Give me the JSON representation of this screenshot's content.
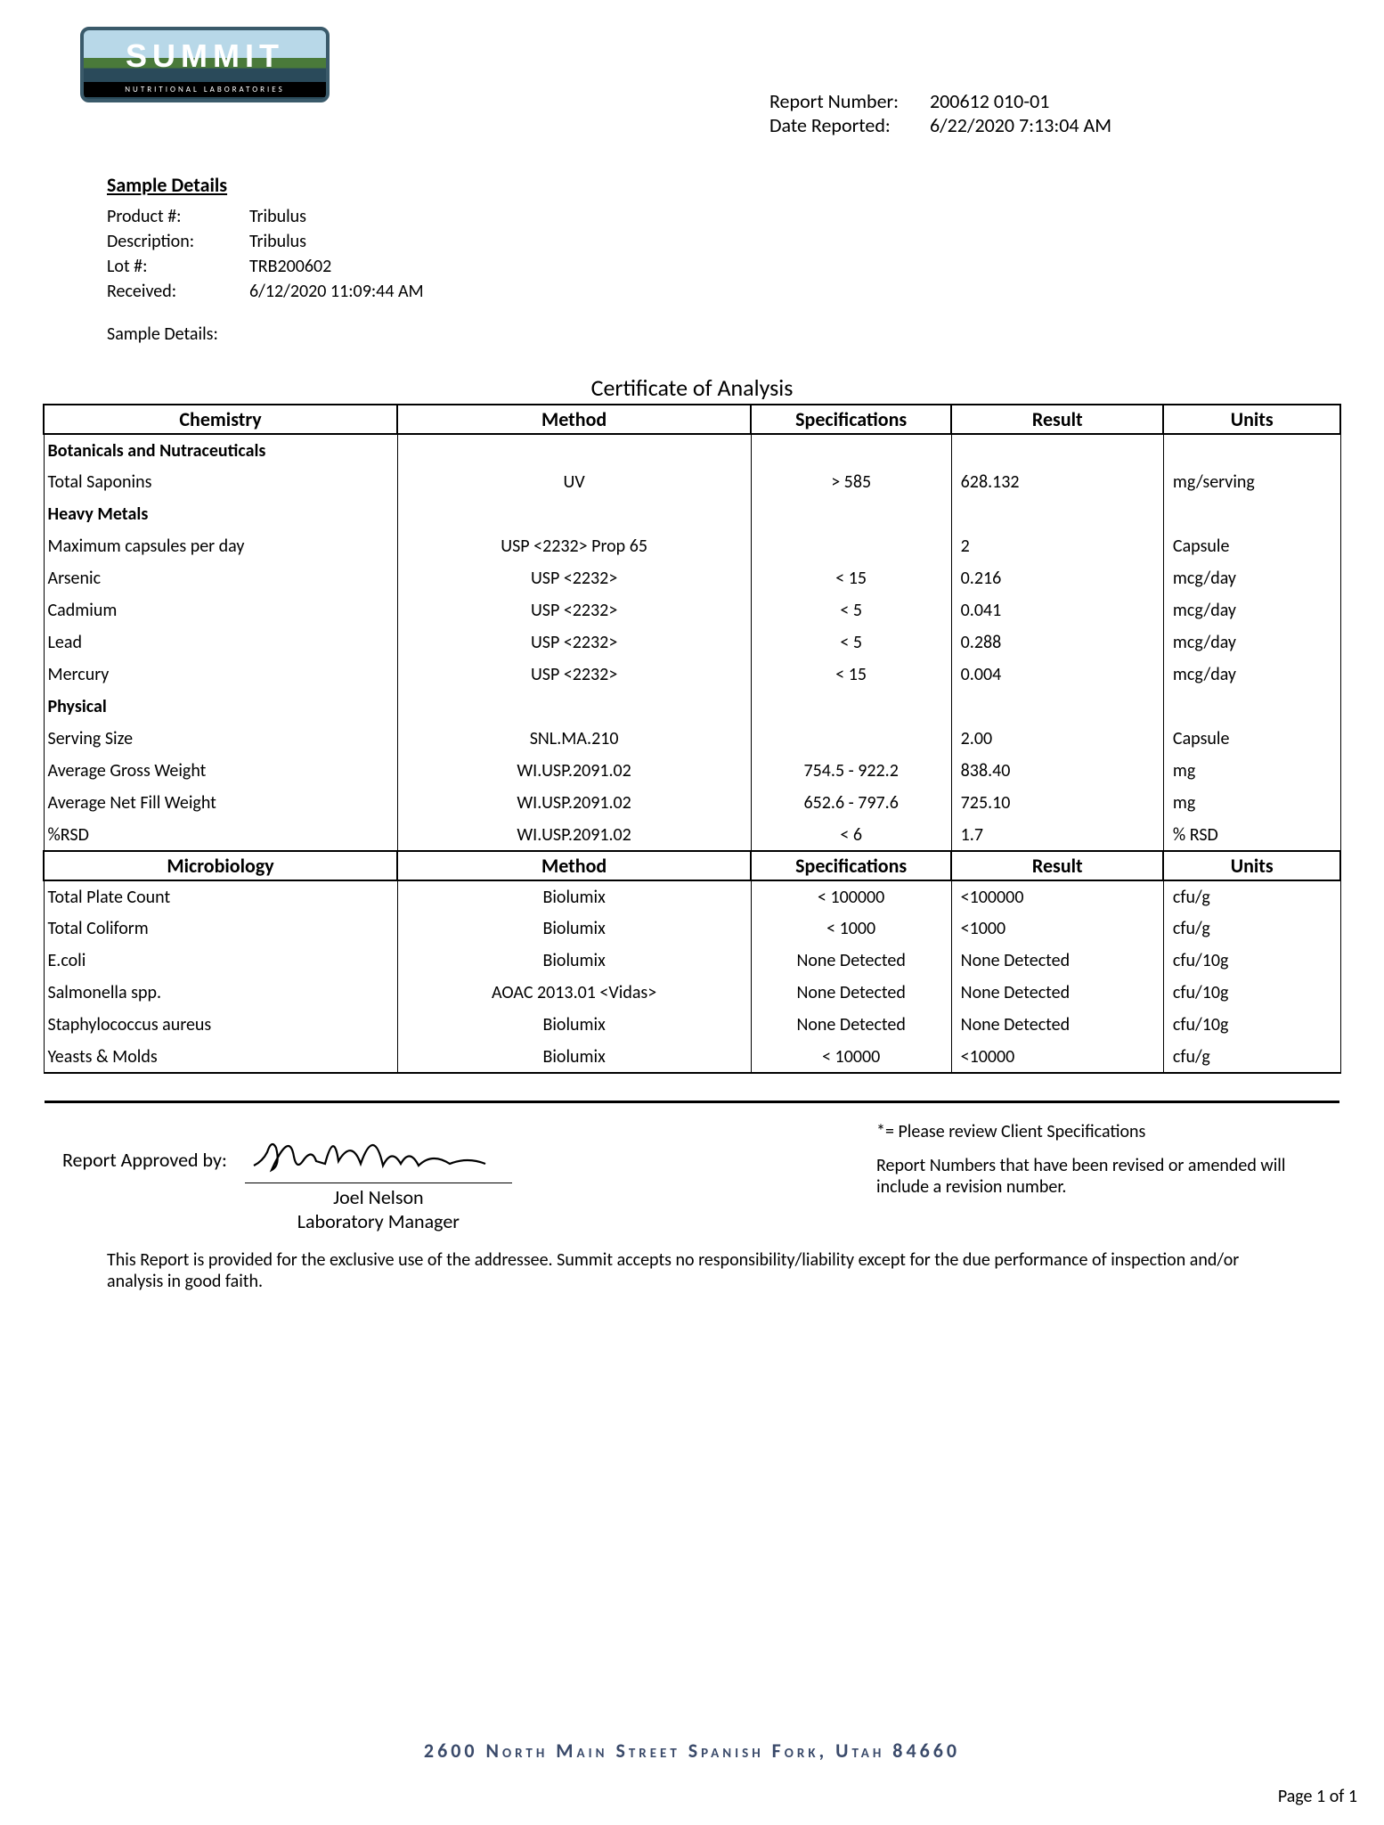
{
  "logo": {
    "main": "SUMMIT",
    "sub": "NUTRITIONAL LABORATORIES"
  },
  "report_info": {
    "number_label": "Report Number:",
    "number_value": "200612 010-01",
    "date_label": "Date Reported:",
    "date_value": "6/22/2020 7:13:04 AM"
  },
  "sample": {
    "header": "Sample Details",
    "product_label": "Product #:",
    "product_value": "Tribulus",
    "desc_label": "Description:",
    "desc_value": "Tribulus",
    "lot_label": "Lot #:",
    "lot_value": "TRB200602",
    "recv_label": "Received:",
    "recv_value": "6/12/2020 11:09:44 AM",
    "footer_label": "Sample Details:"
  },
  "coa_title": "Certificate of Analysis",
  "table_top": {
    "headers": {
      "chem": "Chemistry",
      "method": "Method",
      "spec": "Specifications",
      "result": "Result",
      "units": "Units"
    },
    "sections": [
      {
        "title": "Botanicals and Nutraceuticals",
        "rows": [
          {
            "chem": "Total Saponins",
            "method": "UV",
            "spec": "> 585",
            "result": "628.132",
            "units": "mg/serving"
          }
        ]
      },
      {
        "title": "Heavy Metals",
        "rows": [
          {
            "chem": "Maximum capsules per day",
            "method": "USP <2232> Prop 65",
            "spec": "",
            "result": "2",
            "units": "Capsule"
          },
          {
            "chem": "Arsenic",
            "method": "USP <2232>",
            "spec": "< 15",
            "result": "0.216",
            "units": "mcg/day"
          },
          {
            "chem": "Cadmium",
            "method": "USP <2232>",
            "spec": "< 5",
            "result": "0.041",
            "units": "mcg/day"
          },
          {
            "chem": "Lead",
            "method": "USP <2232>",
            "spec": "< 5",
            "result": "0.288",
            "units": "mcg/day"
          },
          {
            "chem": "Mercury",
            "method": "USP <2232>",
            "spec": "< 15",
            "result": "0.004",
            "units": "mcg/day"
          }
        ]
      },
      {
        "title": "Physical",
        "rows": [
          {
            "chem": "Serving Size",
            "method": "SNL.MA.210",
            "spec": "",
            "result": "2.00",
            "units": "Capsule"
          },
          {
            "chem": "Average Gross Weight",
            "method": "WI.USP.2091.02",
            "spec": "754.5 - 922.2",
            "result": "838.40",
            "units": "mg"
          },
          {
            "chem": "Average Net Fill Weight",
            "method": "WI.USP.2091.02",
            "spec": "652.6 - 797.6",
            "result": "725.10",
            "units": "mg"
          },
          {
            "chem": "%RSD",
            "method": "WI.USP.2091.02",
            "spec": "< 6",
            "result": "1.7",
            "units": "% RSD"
          }
        ]
      }
    ]
  },
  "table_bottom": {
    "headers": {
      "chem": "Microbiology",
      "method": "Method",
      "spec": "Specifications",
      "result": "Result",
      "units": "Units"
    },
    "rows": [
      {
        "chem": "Total Plate Count",
        "method": "Biolumix",
        "spec": "< 100000",
        "result": "<100000",
        "units": "cfu/g"
      },
      {
        "chem": "Total Coliform",
        "method": "Biolumix",
        "spec": "< 1000",
        "result": "<1000",
        "units": "cfu/g"
      },
      {
        "chem": "E.coli",
        "method": "Biolumix",
        "spec": "None Detected",
        "result": "None Detected",
        "units": "cfu/10g"
      },
      {
        "chem": "Salmonella spp.",
        "method": "AOAC 2013.01 <Vidas>",
        "spec": "None Detected",
        "result": "None Detected",
        "units": "cfu/10g"
      },
      {
        "chem": "Staphylococcus aureus",
        "method": "Biolumix",
        "spec": "None Detected",
        "result": "None Detected",
        "units": "cfu/10g"
      },
      {
        "chem": "Yeasts & Molds",
        "method": "Biolumix",
        "spec": "< 10000",
        "result": "<10000",
        "units": "cfu/g"
      }
    ]
  },
  "approval": {
    "label": "Report Approved by:",
    "name": "Joel Nelson",
    "title": "Laboratory Manager",
    "note1": "*= Please review Client Specifications",
    "note2": "Report Numbers that have been revised or amended will include a revision number."
  },
  "disclaimer": "This Report is provided for the exclusive use of the addressee. Summit accepts no responsibility/liability except for the due performance of inspection and/or analysis in good faith.",
  "footer_address": "2600 North Main Street Spanish Fork, Utah  84660",
  "page_num": "Page 1 of 1",
  "colors": {
    "text": "#000000",
    "border": "#000000",
    "footer_text": "#3a4a6a"
  }
}
